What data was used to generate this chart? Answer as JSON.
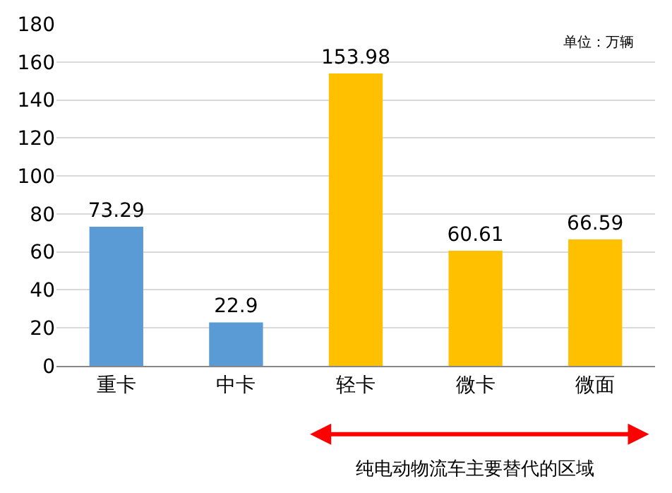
{
  "chart_data": {
    "type": "bar",
    "categories": [
      "重卡",
      "中卡",
      "轻卡",
      "微卡",
      "微面"
    ],
    "values": [
      73.29,
      22.9,
      153.98,
      60.61,
      66.59
    ],
    "colors": [
      "#5b9bd5",
      "#5b9bd5",
      "#ffc000",
      "#ffc000",
      "#ffc000"
    ],
    "data_labels": true,
    "ylim": [
      0,
      180
    ],
    "yticks": [
      0,
      20,
      40,
      60,
      80,
      100,
      120,
      140,
      160,
      180
    ],
    "grid": "y",
    "annotations": [
      "单位：万辆",
      "纯电动物流车主要替代的区域"
    ]
  }
}
